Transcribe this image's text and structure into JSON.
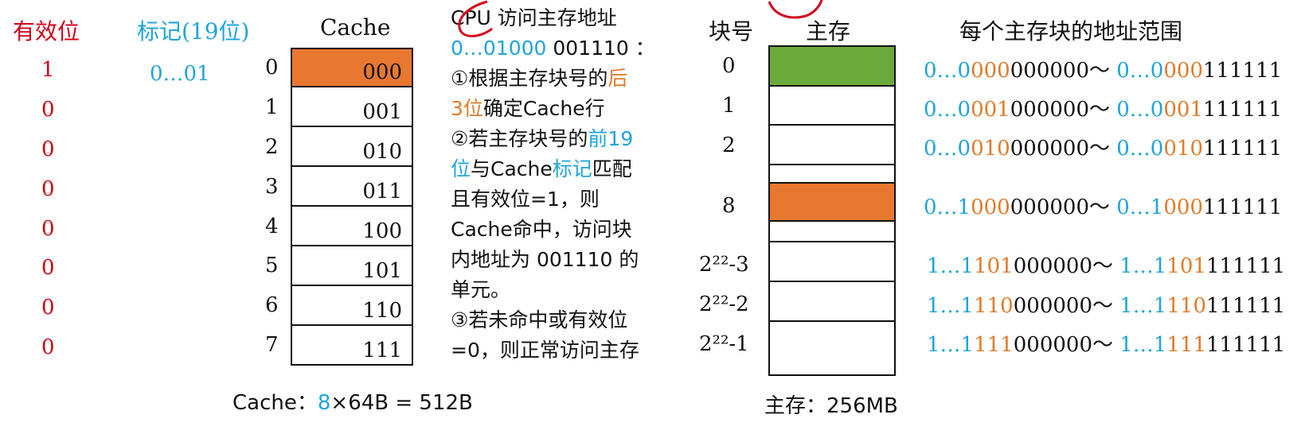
{
  "headers": {
    "valid": "有效位",
    "tag": "标记(19位)",
    "cache": "Cache",
    "block_no": "块号",
    "main_mem": "主存",
    "range": "每个主存块的地址范围"
  },
  "valid_bits": [
    "1",
    "0",
    "0",
    "0",
    "0",
    "0",
    "0",
    "0"
  ],
  "tag_values": [
    "0…01"
  ],
  "cache_rows": [
    {
      "index": "0",
      "bits": "000"
    },
    {
      "index": "1",
      "bits": "001"
    },
    {
      "index": "2",
      "bits": "010"
    },
    {
      "index": "3",
      "bits": "011"
    },
    {
      "index": "4",
      "bits": "100"
    },
    {
      "index": "5",
      "bits": "101"
    },
    {
      "index": "6",
      "bits": "110"
    },
    {
      "index": "7",
      "bits": "111"
    }
  ],
  "cache_footer": {
    "prefix": "Cache：",
    "highlight": "8",
    "rest": "×64B = 512B"
  },
  "description": {
    "line1": "CPU 访问主存地址",
    "addr_blue": "0…01000",
    "addr_black": " 001110 ：",
    "step1_a": "①根据主存块号的",
    "step1_b": "后",
    "step1_c": "3位",
    "step1_d": "确定Cache行",
    "step2_a": "②若主存块号的",
    "step2_b": "前19",
    "step2_c": "位",
    "step2_d": "与Cache",
    "step2_e": "标记",
    "step2_f": "匹配",
    "step2_g": "且有效位=1，则",
    "step2_h": "Cache命中，访问块",
    "step2_i": "内地址为 001110 的",
    "step2_j": "单元。",
    "step3_a": "③若未命中或有效位",
    "step3_b": "=0，则正常访问主存"
  },
  "block_numbers": [
    "0",
    "1",
    "2",
    "8",
    "2²²-3",
    "2²²-2",
    "2²²-1"
  ],
  "mem_footer": "主存：256MB",
  "ranges": [
    {
      "a": "0…0",
      "b": "000",
      "c": "000000～ ",
      "d": "0…0",
      "e": "000",
      "f": "111111"
    },
    {
      "a": "0…0",
      "b": "001",
      "c": "000000～ ",
      "d": "0…0",
      "e": "001",
      "f": "111111"
    },
    {
      "a": "0…0",
      "b": "010",
      "c": "000000～ ",
      "d": "0…0",
      "e": "010",
      "f": "111111"
    },
    {
      "a": "0…1",
      "b": "000",
      "c": "000000～ ",
      "d": "0…1",
      "e": "000",
      "f": "111111"
    },
    {
      "a": "1…1",
      "b": "101",
      "c": "000000～ ",
      "d": "1…1",
      "e": "101",
      "f": "111111"
    },
    {
      "a": "1…1",
      "b": "110",
      "c": "000000～ ",
      "d": "1…1",
      "e": "110",
      "f": "111111"
    },
    {
      "a": "1…1",
      "b": "111",
      "c": "000000～ ",
      "d": "1…1",
      "e": "111",
      "f": "111111"
    }
  ],
  "colors": {
    "valid": "#d0021b",
    "tag": "#1fa4dc",
    "hit": "#e87830",
    "mem_green": "#6aaa3a",
    "range_blue": "#1fa4dc",
    "range_orange": "#e07b2a"
  }
}
